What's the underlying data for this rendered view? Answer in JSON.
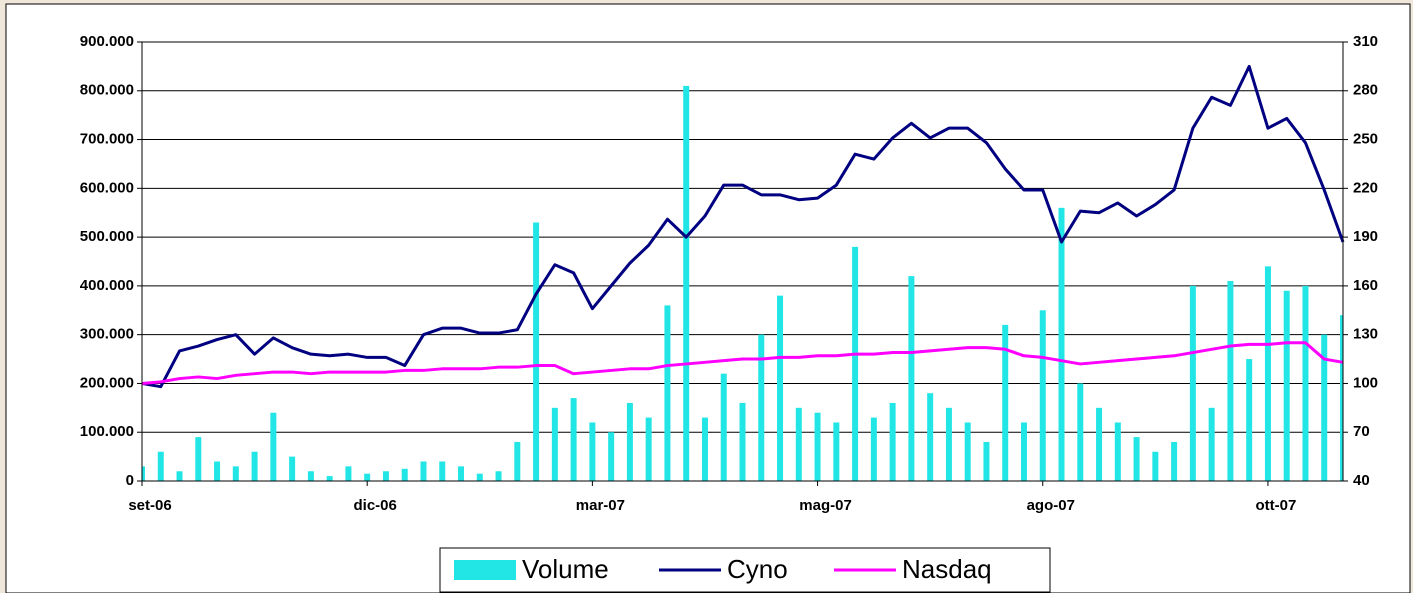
{
  "chart_data": {
    "type": "bar-line",
    "categories": [
      "set-06",
      null,
      null,
      null,
      null,
      null,
      null,
      null,
      null,
      null,
      null,
      null,
      "dic-06",
      null,
      null,
      null,
      null,
      null,
      null,
      null,
      null,
      null,
      null,
      null,
      "mar-07",
      null,
      null,
      null,
      null,
      null,
      null,
      null,
      null,
      null,
      null,
      null,
      "mag-07",
      null,
      null,
      null,
      null,
      null,
      null,
      null,
      null,
      null,
      null,
      null,
      "ago-07",
      null,
      null,
      null,
      null,
      null,
      null,
      null,
      null,
      null,
      null,
      null,
      "ott-07",
      null,
      null,
      null,
      null
    ],
    "series": [
      {
        "name": "Volume",
        "type": "bar",
        "color": "#22e6e6",
        "values": [
          30000,
          60000,
          20000,
          90000,
          40000,
          30000,
          60000,
          140000,
          50000,
          20000,
          10000,
          30000,
          15000,
          20000,
          25000,
          40000,
          40000,
          30000,
          15000,
          20000,
          80000,
          530000,
          150000,
          170000,
          120000,
          100000,
          160000,
          130000,
          360000,
          810000,
          130000,
          220000,
          160000,
          300000,
          380000,
          150000,
          140000,
          120000,
          480000,
          130000,
          160000,
          420000,
          180000,
          150000,
          120000,
          80000,
          320000,
          120000,
          350000,
          560000,
          200000,
          150000,
          120000,
          90000,
          60000,
          80000,
          400000,
          150000,
          410000,
          250000,
          440000,
          390000,
          400000,
          300000,
          340000
        ]
      },
      {
        "name": "Cyno",
        "type": "line",
        "axis": "y2",
        "color": "#000080",
        "values": [
          100,
          98,
          120,
          123,
          127,
          130,
          118,
          128,
          122,
          118,
          117,
          118,
          116,
          116,
          111,
          130,
          134,
          134,
          131,
          131,
          133,
          155,
          173,
          168,
          146,
          160,
          174,
          185,
          201,
          190,
          203,
          222,
          222,
          216,
          216,
          213,
          214,
          222,
          241,
          238,
          251,
          260,
          251,
          257,
          257,
          248,
          232,
          219,
          219,
          187,
          206,
          205,
          211,
          203,
          210,
          219,
          257,
          276,
          271,
          295,
          257,
          263,
          248,
          219,
          187
        ]
      },
      {
        "name": "Nasdaq",
        "type": "line",
        "axis": "y2",
        "color": "#ff00ff",
        "values": [
          100,
          101,
          103,
          104,
          103,
          105,
          106,
          107,
          107,
          106,
          107,
          107,
          107,
          107,
          108,
          108,
          109,
          109,
          109,
          110,
          110,
          111,
          111,
          106,
          107,
          108,
          109,
          109,
          111,
          112,
          113,
          114,
          115,
          115,
          116,
          116,
          117,
          117,
          118,
          118,
          119,
          119,
          120,
          121,
          122,
          122,
          121,
          117,
          116,
          114,
          112,
          113,
          114,
          115,
          116,
          117,
          119,
          121,
          123,
          124,
          124,
          125,
          125,
          115,
          113
        ]
      }
    ],
    "ylim": [
      0,
      900000
    ],
    "yticks": [
      0,
      {
        "value": 100000,
        "label": "100.000"
      },
      {
        "value": 200000,
        "label": "200.000"
      },
      {
        "value": 300000,
        "label": "300.000"
      },
      {
        "value": 400000,
        "label": "400.000"
      },
      {
        "value": 500000,
        "label": "500.000"
      },
      {
        "value": 600000,
        "label": "600.000"
      },
      {
        "value": 700000,
        "label": "700.000"
      },
      {
        "value": 800000,
        "label": "800.000"
      },
      {
        "value": 900000,
        "label": "900.000"
      }
    ],
    "y2lim": [
      40,
      310
    ],
    "y2ticks": [
      40,
      70,
      100,
      130,
      160,
      190,
      220,
      250,
      280,
      310
    ],
    "grid": true,
    "legend": "bottom"
  }
}
